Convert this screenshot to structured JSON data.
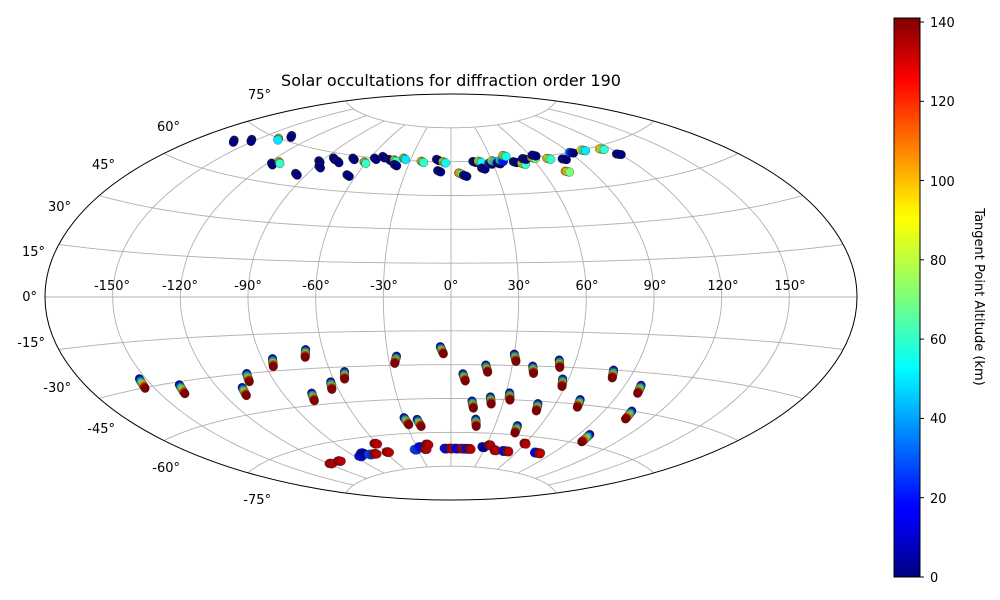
{
  "chart_data": {
    "type": "scatter",
    "projection": "aitoff",
    "title": "Solar occultations for diffraction order 190",
    "longitude_tick_labels": [
      "-150°",
      "-120°",
      "-90°",
      "-60°",
      "-30°",
      "0°",
      "30°",
      "60°",
      "90°",
      "120°",
      "150°"
    ],
    "latitude_tick_labels": [
      "-75°",
      "-60°",
      "-45°",
      "-30°",
      "-15°",
      "0°",
      "15°",
      "30°",
      "45°",
      "60°",
      "75°"
    ],
    "grid": true,
    "colorbar": {
      "label": "Tangent Point Altitude (km)",
      "colormap": "jet",
      "range": [
        0,
        141
      ],
      "tick_labels": [
        "0",
        "20",
        "40",
        "60",
        "80",
        "100",
        "120",
        "140"
      ]
    },
    "north_points_note": "clusters near 60°N, colored dark blue to orange",
    "north_tracks": [
      {
        "lon": -161,
        "lat": 55,
        "alt": 5
      },
      {
        "lon": -153,
        "lat": 57,
        "alt": 5
      },
      {
        "lon": -140,
        "lat": 60,
        "alt": 90
      },
      {
        "lon": -136,
        "lat": 62,
        "alt": 5
      },
      {
        "lon": -118,
        "lat": 52,
        "alt": 5
      },
      {
        "lon": -115,
        "lat": 53,
        "alt": 100
      },
      {
        "lon": -97,
        "lat": 50,
        "alt": 5
      },
      {
        "lon": -92,
        "lat": 56,
        "alt": 5
      },
      {
        "lon": -88,
        "lat": 54,
        "alt": 5
      },
      {
        "lon": -85,
        "lat": 58,
        "alt": 5
      },
      {
        "lon": -80,
        "lat": 57,
        "alt": 5
      },
      {
        "lon": -72,
        "lat": 59,
        "alt": 5
      },
      {
        "lon": -66,
        "lat": 52,
        "alt": 5
      },
      {
        "lon": -62,
        "lat": 58,
        "alt": 100
      },
      {
        "lon": -57,
        "lat": 60,
        "alt": 5
      },
      {
        "lon": -52,
        "lat": 61,
        "alt": 5
      },
      {
        "lon": -46,
        "lat": 60,
        "alt": 5
      },
      {
        "lon": -42,
        "lat": 60,
        "alt": 100
      },
      {
        "lon": -40,
        "lat": 58,
        "alt": 5
      },
      {
        "lon": -36,
        "lat": 61,
        "alt": 90
      },
      {
        "lon": -22,
        "lat": 60,
        "alt": 100
      },
      {
        "lon": -11,
        "lat": 61,
        "alt": 5
      },
      {
        "lon": -9,
        "lat": 56,
        "alt": 5
      },
      {
        "lon": -6,
        "lat": 60,
        "alt": 95
      },
      {
        "lon": 5,
        "lat": 55,
        "alt": 110
      },
      {
        "lon": 8,
        "lat": 54,
        "alt": 5
      },
      {
        "lon": 16,
        "lat": 60,
        "alt": 5
      },
      {
        "lon": 20,
        "lat": 60,
        "alt": 95
      },
      {
        "lon": 21,
        "lat": 57,
        "alt": 5
      },
      {
        "lon": 27,
        "lat": 59,
        "alt": 30
      },
      {
        "lon": 30,
        "lat": 60,
        "alt": 90
      },
      {
        "lon": 33,
        "lat": 59,
        "alt": 5
      },
      {
        "lon": 36,
        "lat": 60,
        "alt": 60
      },
      {
        "lon": 40,
        "lat": 62,
        "alt": 95
      },
      {
        "lon": 45,
        "lat": 59,
        "alt": 5
      },
      {
        "lon": 50,
        "lat": 58,
        "alt": 100
      },
      {
        "lon": 53,
        "lat": 60,
        "alt": 5
      },
      {
        "lon": 60,
        "lat": 60,
        "alt": 110
      },
      {
        "lon": 62,
        "lat": 61,
        "alt": 5
      },
      {
        "lon": 70,
        "lat": 59,
        "alt": 100
      },
      {
        "lon": 74,
        "lat": 53,
        "alt": 110
      },
      {
        "lon": 80,
        "lat": 58,
        "alt": 5
      },
      {
        "lon": 90,
        "lat": 60,
        "alt": 40
      },
      {
        "lon": 100,
        "lat": 60,
        "alt": 90
      },
      {
        "lon": 113,
        "lat": 59,
        "alt": 100
      },
      {
        "lon": 118,
        "lat": 56,
        "alt": 5
      }
    ],
    "south_tracks": [
      {
        "lon": -153,
        "lat": -27,
        "dir": -1
      },
      {
        "lon": -137,
        "lat": -31,
        "dir": -1
      },
      {
        "lon": -108,
        "lat": -35,
        "dir": -1
      },
      {
        "lon": -101,
        "lat": -30,
        "dir": -1
      },
      {
        "lon": -85,
        "lat": -25,
        "dir": -1
      },
      {
        "lon": -75,
        "lat": -40,
        "dir": -1
      },
      {
        "lon": -68,
        "lat": -22,
        "dir": -1
      },
      {
        "lon": -62,
        "lat": -36,
        "dir": -1
      },
      {
        "lon": -53,
        "lat": -32,
        "dir": -1
      },
      {
        "lon": -26,
        "lat": -26,
        "dir": -1
      },
      {
        "lon": -5,
        "lat": -22,
        "dir": 1
      },
      {
        "lon": 6,
        "lat": -34,
        "dir": 1
      },
      {
        "lon": 17,
        "lat": -30,
        "dir": 1
      },
      {
        "lon": 30,
        "lat": -25,
        "dir": 1
      },
      {
        "lon": 40,
        "lat": -30,
        "dir": 1
      },
      {
        "lon": 52,
        "lat": -27,
        "dir": 1
      },
      {
        "lon": 57,
        "lat": -35,
        "dir": 1
      },
      {
        "lon": 80,
        "lat": -30,
        "dir": 1
      },
      {
        "lon": 98,
        "lat": -35,
        "dir": 1
      },
      {
        "lon": 12,
        "lat": -46,
        "dir": 1
      },
      {
        "lon": 22,
        "lat": -44,
        "dir": 1
      },
      {
        "lon": 32,
        "lat": -42,
        "dir": 1
      },
      {
        "lon": 50,
        "lat": -46,
        "dir": 1
      },
      {
        "lon": 72,
        "lat": -43,
        "dir": 1
      },
      {
        "lon": 105,
        "lat": -45,
        "dir": 1
      },
      {
        "lon": -30,
        "lat": -53,
        "dir": 1
      },
      {
        "lon": -22,
        "lat": -54,
        "dir": 1
      },
      {
        "lon": 16,
        "lat": -54,
        "dir": 1
      },
      {
        "lon": 45,
        "lat": -56,
        "dir": 1
      },
      {
        "lon": 97,
        "lat": -56,
        "dir": 1
      }
    ],
    "south_dense_band": [
      {
        "lon": -118,
        "lat": -67,
        "alt": 140
      },
      {
        "lon": -108,
        "lat": -67,
        "alt": 140
      },
      {
        "lon": -85,
        "lat": -67,
        "alt": 20
      },
      {
        "lon": -80,
        "lat": -66,
        "alt": 10
      },
      {
        "lon": -75,
        "lat": -67,
        "alt": 30
      },
      {
        "lon": -70,
        "lat": -67,
        "alt": 140
      },
      {
        "lon": -61,
        "lat": -63,
        "alt": 140
      },
      {
        "lon": -58,
        "lat": -67,
        "alt": 140
      },
      {
        "lon": -32,
        "lat": -67,
        "alt": 30
      },
      {
        "lon": -27,
        "lat": -66,
        "alt": 20
      },
      {
        "lon": -23,
        "lat": -67,
        "alt": 140
      },
      {
        "lon": -20,
        "lat": -65,
        "alt": 140
      },
      {
        "lon": -5,
        "lat": -67,
        "alt": 20
      },
      {
        "lon": 0,
        "lat": -67,
        "alt": 140
      },
      {
        "lon": 5,
        "lat": -67,
        "alt": 20
      },
      {
        "lon": 10,
        "lat": -67,
        "alt": 140
      },
      {
        "lon": 14,
        "lat": -67,
        "alt": 20
      },
      {
        "lon": 17,
        "lat": -67,
        "alt": 140
      },
      {
        "lon": 28,
        "lat": -66,
        "alt": 10
      },
      {
        "lon": 33,
        "lat": -65,
        "alt": 140
      },
      {
        "lon": 40,
        "lat": -67,
        "alt": 140
      },
      {
        "lon": 48,
        "lat": -67,
        "alt": 20
      },
      {
        "lon": 52,
        "lat": -67,
        "alt": 140
      },
      {
        "lon": 60,
        "lat": -63,
        "alt": 140
      },
      {
        "lon": 76,
        "lat": -66,
        "alt": 20
      },
      {
        "lon": 80,
        "lat": -66,
        "alt": 140
      }
    ]
  }
}
